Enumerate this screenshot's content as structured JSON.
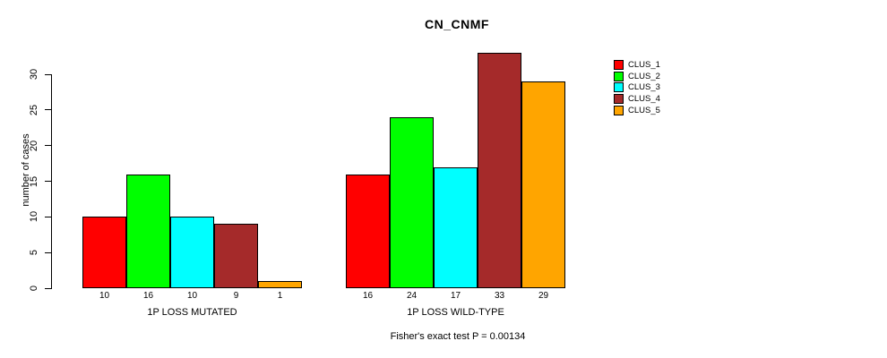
{
  "chart_data": {
    "type": "bar",
    "title": "CN_CNMF",
    "ylabel": "number of cases",
    "xlabel": "",
    "groups": [
      {
        "label": "1P LOSS MUTATED",
        "values": [
          10,
          16,
          10,
          9,
          1
        ]
      },
      {
        "label": "1P LOSS WILD-TYPE",
        "values": [
          16,
          24,
          17,
          33,
          29
        ]
      }
    ],
    "series": [
      {
        "name": "CLUS_1",
        "color": "#ff0000",
        "values": [
          10,
          16
        ]
      },
      {
        "name": "CLUS_2",
        "color": "#00ff00",
        "values": [
          16,
          24
        ]
      },
      {
        "name": "CLUS_3",
        "color": "#00ffff",
        "values": [
          10,
          17
        ]
      },
      {
        "name": "CLUS_4",
        "color": "#a52a2a",
        "values": [
          9,
          33
        ]
      },
      {
        "name": "CLUS_5",
        "color": "#ffa500",
        "values": [
          1,
          29
        ]
      }
    ],
    "bar_value_labels": [
      [
        "10",
        "16",
        "10",
        "9",
        "1"
      ],
      [
        "16",
        "24",
        "17",
        "33",
        "29"
      ]
    ],
    "yticks": [
      0,
      5,
      10,
      15,
      20,
      25,
      30
    ],
    "ylim": [
      0,
      30
    ],
    "grid": false,
    "legend_position": "right",
    "annotation": "Fisher's exact test P = 0.00134"
  },
  "legend": {
    "items": [
      {
        "label": "CLUS_1",
        "color": "#ff0000"
      },
      {
        "label": "CLUS_2",
        "color": "#00ff00"
      },
      {
        "label": "CLUS_3",
        "color": "#00ffff"
      },
      {
        "label": "CLUS_4",
        "color": "#a52a2a"
      },
      {
        "label": "CLUS_5",
        "color": "#ffa500"
      }
    ]
  }
}
